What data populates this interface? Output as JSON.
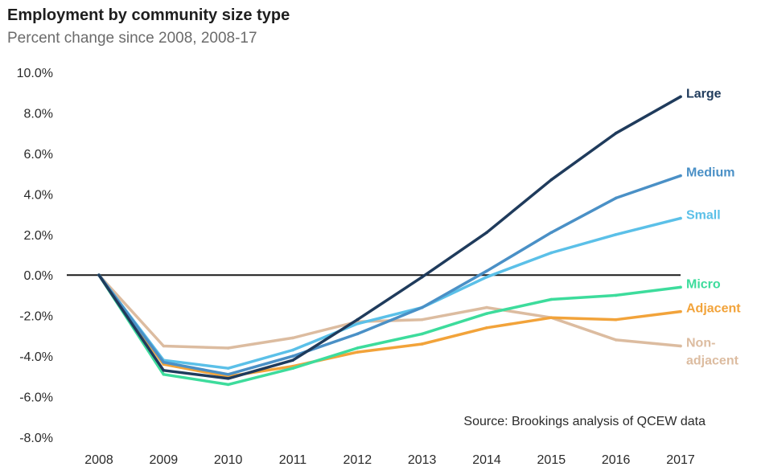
{
  "chart_data": {
    "type": "line",
    "title": "Employment by community size type",
    "subtitle": "Percent change since 2008, 2008-17",
    "x": [
      "2008",
      "2009",
      "2010",
      "2011",
      "2012",
      "2013",
      "2014",
      "2015",
      "2016",
      "2017"
    ],
    "y_ticks": [
      "10.0%",
      "8.0%",
      "6.0%",
      "4.0%",
      "2.0%",
      "0.0%",
      "-2.0%",
      "-4.0%",
      "-6.0%",
      "-8.0%"
    ],
    "ylim": [
      -8,
      10
    ],
    "grid": false,
    "baseline": 0,
    "source": "Source: Brookings analysis of QCEW data",
    "series": [
      {
        "name": "Large",
        "label_lines": [
          "Large"
        ],
        "color": "#1f3b5c",
        "values": [
          0,
          -4.7,
          -5.1,
          -4.2,
          -2.2,
          -0.1,
          2.1,
          4.7,
          7.0,
          8.8
        ]
      },
      {
        "name": "Medium",
        "label_lines": [
          "Medium"
        ],
        "color": "#4a90c6",
        "values": [
          0,
          -4.3,
          -4.9,
          -4.0,
          -2.9,
          -1.6,
          0.2,
          2.1,
          3.8,
          4.9
        ]
      },
      {
        "name": "Small",
        "label_lines": [
          "Small"
        ],
        "color": "#5bc0e8",
        "values": [
          0,
          -4.2,
          -4.6,
          -3.7,
          -2.4,
          -1.6,
          -0.1,
          1.1,
          2.0,
          2.8
        ]
      },
      {
        "name": "Micro",
        "label_lines": [
          "Micro"
        ],
        "color": "#3ddc9c",
        "values": [
          0,
          -4.9,
          -5.4,
          -4.6,
          -3.6,
          -2.9,
          -1.9,
          -1.2,
          -1.0,
          -0.6
        ]
      },
      {
        "name": "Adjacent",
        "label_lines": [
          "Adjacent"
        ],
        "color": "#f2a33a",
        "values": [
          0,
          -4.4,
          -5.0,
          -4.5,
          -3.8,
          -3.4,
          -2.6,
          -2.1,
          -2.2,
          -1.8
        ]
      },
      {
        "name": "Non-adjacent",
        "label_lines": [
          "Non-",
          "adjacent"
        ],
        "color": "#dcbca0",
        "values": [
          0,
          -3.5,
          -3.6,
          -3.1,
          -2.3,
          -2.2,
          -1.6,
          -2.1,
          -3.2,
          -3.5
        ]
      }
    ]
  }
}
